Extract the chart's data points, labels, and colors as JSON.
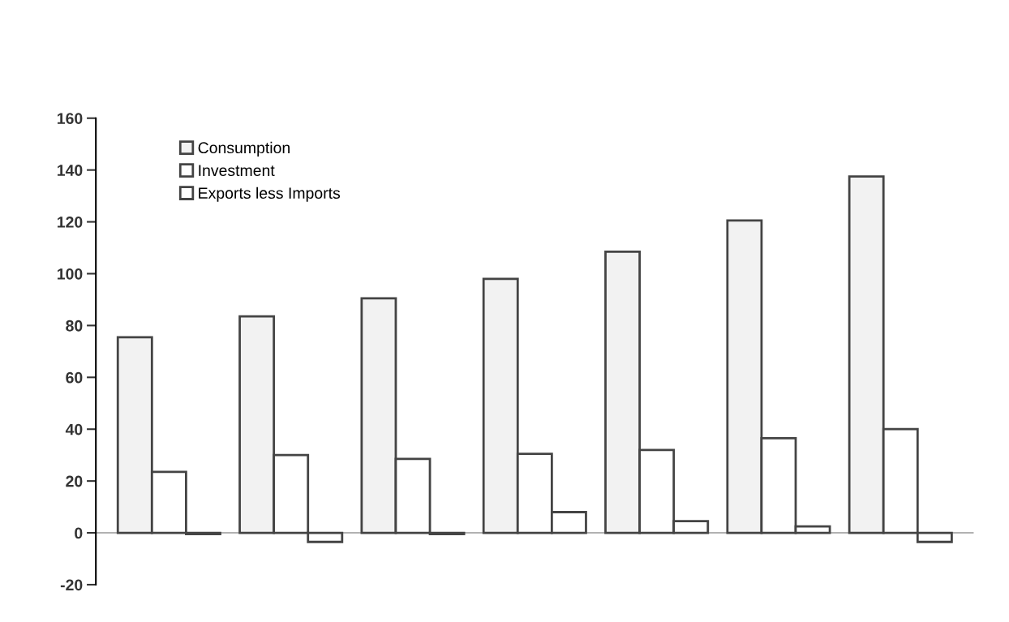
{
  "chart_data": {
    "type": "bar",
    "categories": [
      null,
      null,
      null,
      null,
      null,
      null,
      null
    ],
    "series": [
      {
        "name": "Consumption",
        "color": "#f2f2f2",
        "values": [
          75.5,
          83.5,
          90.5,
          98,
          108.5,
          120.5,
          137.5
        ]
      },
      {
        "name": "Investment",
        "color": "#ffffff",
        "values": [
          23.5,
          30,
          28.5,
          30.5,
          32,
          36.5,
          40
        ]
      },
      {
        "name": "Exports less Imports",
        "color": "#ffffff",
        "values": [
          -0.5,
          -3.5,
          -0.5,
          8,
          4.5,
          2.5,
          -3.5
        ]
      }
    ],
    "ylim": [
      -20,
      160
    ],
    "yticks": [
      -20,
      0,
      20,
      40,
      60,
      80,
      100,
      120,
      140,
      160
    ],
    "ref_lines": [
      {
        "axis": "y",
        "value": 0,
        "color": "#999999"
      }
    ],
    "legend": "top left",
    "grid": false
  }
}
